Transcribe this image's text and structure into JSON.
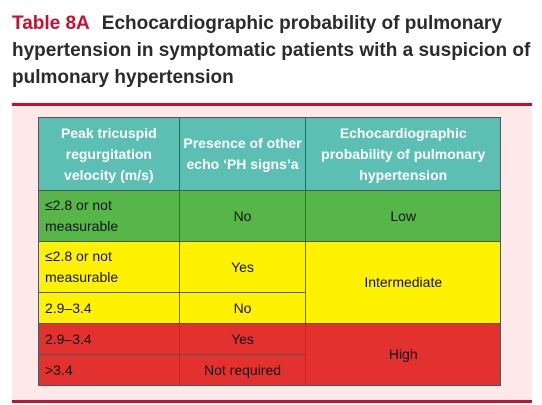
{
  "title": {
    "number": "Table 8A",
    "text": "Echocardiographic probability of pulmonary hypertension in symptomatic patients with a suspicion of pulmonary hypertension"
  },
  "table": {
    "headers": [
      "Peak tricuspid regurgitation velocity (m/s)",
      "Presence of other echo ‘PH signs’a",
      "Echocardiographic probability of pulmonary hypertension"
    ],
    "rows": [
      {
        "velocity": "≤2.8 or not measurable",
        "signs": "No"
      },
      {
        "velocity": "≤2.8 or not measurable",
        "signs": "Yes"
      },
      {
        "velocity": "2.9–3.4",
        "signs": "No"
      },
      {
        "velocity": "2.9–3.4",
        "signs": "Yes"
      },
      {
        "velocity": ">3.4",
        "signs": "Not required"
      }
    ],
    "probabilities": [
      "Low",
      "Intermediate",
      "High"
    ]
  },
  "colors": {
    "accent": "#c8102e",
    "header": "#5bbfb4",
    "low": "#56b748",
    "intermediate": "#fef200",
    "high": "#e2312f",
    "panel": "#fde8ea"
  }
}
